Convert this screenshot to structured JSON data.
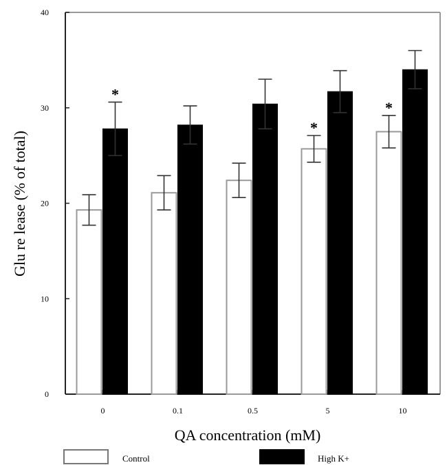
{
  "chart_data": {
    "type": "bar",
    "title": "",
    "xlabel": "QA concentration (mM)",
    "ylabel": "Glu re lease (% of total)",
    "categories": [
      "0",
      "0.1",
      "0.5",
      "5",
      "10"
    ],
    "ylim": [
      0,
      40
    ],
    "yticks": [
      "0",
      "10",
      "20",
      "30",
      "40"
    ],
    "series": [
      {
        "name": "Control",
        "fill": "#ffffff",
        "values": [
          19.3,
          21.1,
          22.4,
          25.7,
          27.5
        ],
        "errors": [
          1.6,
          1.8,
          1.8,
          1.4,
          1.7
        ]
      },
      {
        "name": "High K+",
        "fill": "#000000",
        "values": [
          27.8,
          28.2,
          30.4,
          31.7,
          34.0
        ],
        "errors": [
          2.8,
          2.0,
          2.6,
          2.2,
          2.0
        ]
      }
    ],
    "significance": [
      {
        "category": "0",
        "series": "High K+",
        "label": "*"
      },
      {
        "category": "5",
        "series": "Control",
        "label": "*"
      },
      {
        "category": "10",
        "series": "Control",
        "label": "*"
      }
    ],
    "legend_position": "bottom"
  }
}
